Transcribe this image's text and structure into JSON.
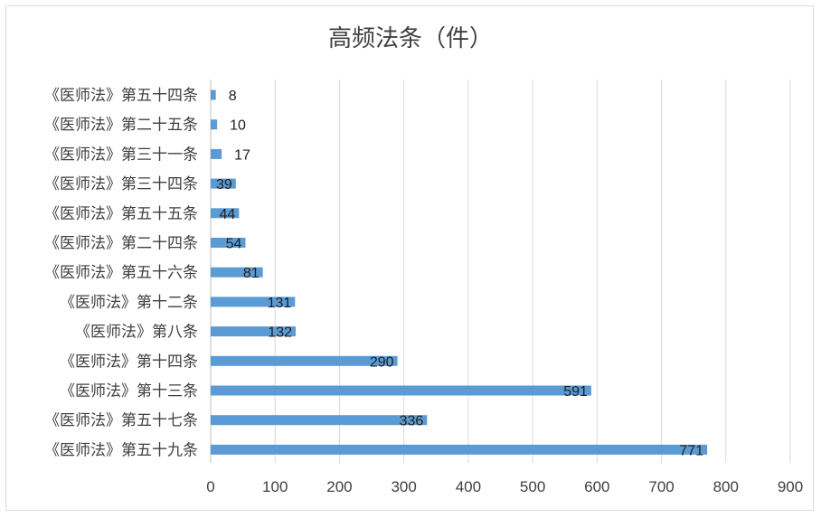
{
  "chart_data": {
    "type": "bar",
    "orientation": "horizontal",
    "title": "高频法条（件）",
    "categories": [
      "《医师法》第五十四条",
      "《医师法》第二十五条",
      "《医师法》第三十一条",
      "《医师法》第三十四条",
      "《医师法》第五十五条",
      "《医师法》第二十四条",
      "《医师法》第五十六条",
      "《医师法》第十二条",
      "《医师法》第八条",
      "《医师法》第十四条",
      "《医师法》第十三条",
      "《医师法》第五十七条",
      "《医师法》第五十九条"
    ],
    "values": [
      8,
      10,
      17,
      39,
      44,
      54,
      81,
      131,
      132,
      290,
      591,
      336,
      771
    ],
    "xlim": [
      0,
      900
    ],
    "xticks": [
      "0",
      "100",
      "200",
      "300",
      "400",
      "500",
      "600",
      "700",
      "800",
      "900"
    ],
    "grid": "vertical",
    "legend": "none",
    "bar_color": "#5b9bd5"
  }
}
